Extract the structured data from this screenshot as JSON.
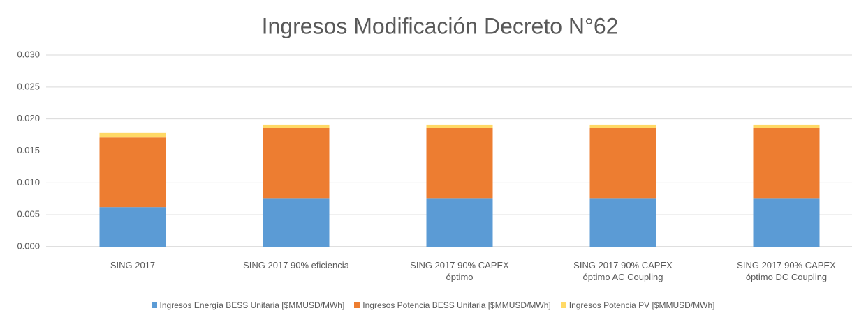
{
  "chart_data": {
    "type": "stacked_bar",
    "title": "Ingresos Modificación Decreto N°62",
    "categories": [
      "SING 2017",
      "SING 2017 90% eficiencia",
      "SING 2017 90% CAPEX óptimo",
      "SING 2017 90% CAPEX óptimo AC Coupling",
      "SING 2017 90% CAPEX óptimo DC Coupling"
    ],
    "series": [
      {
        "name": "Ingresos Energía BESS Unitaria [$MMUSD/MWh]",
        "color": "#5b9bd5",
        "values": [
          0.0062,
          0.0076,
          0.0076,
          0.0076,
          0.0076
        ]
      },
      {
        "name": "Ingresos Potencia BESS Unitaria [$MMUSD/MWh]",
        "color": "#ed7d31",
        "values": [
          0.0109,
          0.011,
          0.011,
          0.011,
          0.011
        ]
      },
      {
        "name": "Ingresos Potencia PV [$MMUSD/MWh]",
        "color": "#ffd966",
        "values": [
          0.0007,
          0.0005,
          0.0005,
          0.0005,
          0.0005
        ]
      }
    ],
    "ylim": [
      0,
      0.03
    ],
    "yticks": [
      {
        "value": 0,
        "label": "0.000"
      },
      {
        "value": 0.005,
        "label": "0.005"
      },
      {
        "value": 0.01,
        "label": "0.010"
      },
      {
        "value": 0.015,
        "label": "0.015"
      },
      {
        "value": 0.02,
        "label": "0.020"
      },
      {
        "value": 0.025,
        "label": "0.025"
      },
      {
        "value": 0.03,
        "label": "0.030"
      }
    ],
    "grid": true
  }
}
